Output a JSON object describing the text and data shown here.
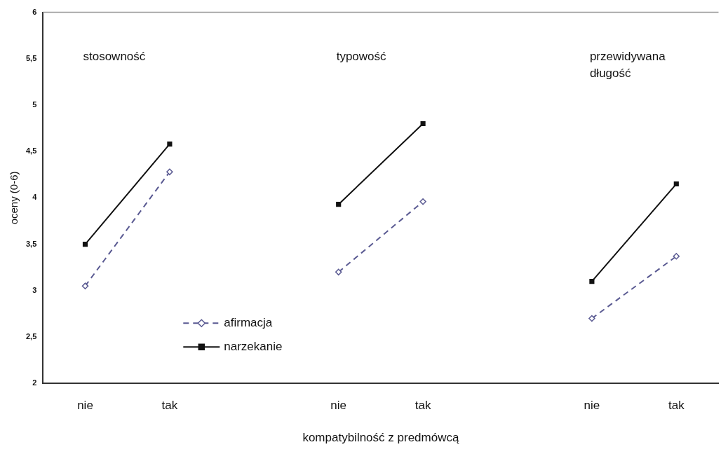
{
  "chart_data": {
    "type": "line",
    "xlabel": "kompatybilność z predmówcą",
    "ylabel": "oceny (0-6)",
    "categories": [
      "nie",
      "tak",
      null,
      "nie",
      "tak",
      null,
      "nie",
      "tak"
    ],
    "series": [
      {
        "name": "afirmacja",
        "color": "#5a5a92",
        "marker": "diamond",
        "line_style": "dashed",
        "values": [
          3.05,
          4.28,
          null,
          3.2,
          3.96,
          null,
          2.7,
          3.37
        ]
      },
      {
        "name": "narzekanie",
        "color": "#111111",
        "marker": "square",
        "line_style": "solid",
        "values": [
          3.5,
          4.58,
          null,
          3.93,
          4.8,
          null,
          3.1,
          4.15
        ]
      }
    ],
    "ylim": [
      2,
      6
    ],
    "yticks": [
      2,
      {
        "value": 2.5,
        "label": "2,5"
      },
      3,
      {
        "value": 3.5,
        "label": "3,5"
      },
      4,
      {
        "value": 4.5,
        "label": "4,5"
      },
      5,
      {
        "value": 5.5,
        "label": "5,5"
      },
      6
    ],
    "annotations": [
      "stosowność",
      "typowość",
      "przewidywana długość"
    ],
    "legend": "bottom left",
    "grid": false
  }
}
